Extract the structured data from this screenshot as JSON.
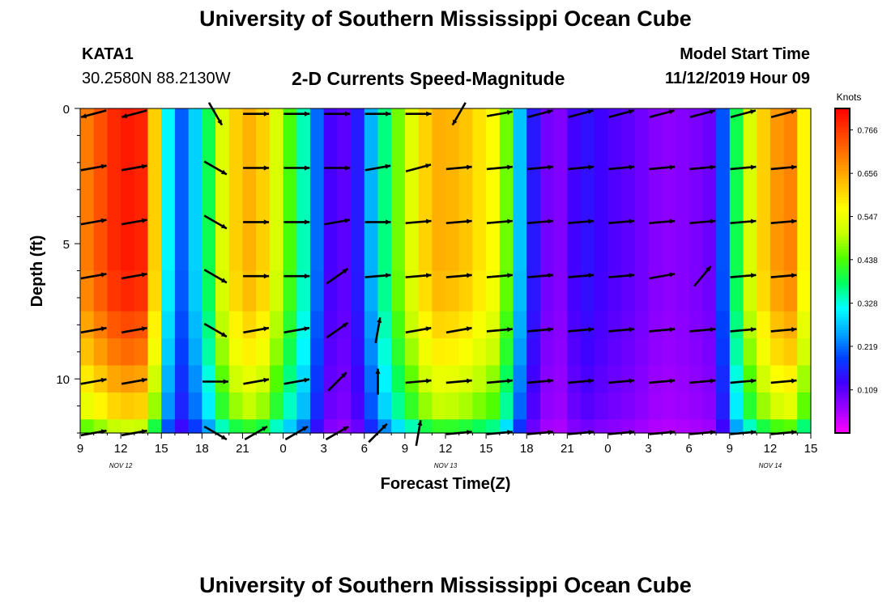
{
  "header": {
    "title": "University of Southern Mississippi Ocean Cube",
    "station": "KATA1",
    "coordinates": "30.2580N 88.2130W",
    "subtitle": "2-D Currents Speed-Magnitude",
    "model_start_label": "Model Start Time",
    "model_start_value": "11/12/2019 Hour 09"
  },
  "footer": {
    "title": "University of Southern Mississippi Ocean Cube"
  },
  "chart_data": {
    "type": "heatmap",
    "xlabel": "Forecast Time(Z)",
    "ylabel": "Depth (ft)",
    "x_tick_labels": [
      "9",
      "12",
      "15",
      "18",
      "21",
      "0",
      "3",
      "6",
      "9",
      "12",
      "15",
      "18",
      "21",
      "0",
      "3",
      "6",
      "9",
      "12",
      "15"
    ],
    "date_labels": [
      "NOV 12",
      "NOV 13",
      "NOV 14"
    ],
    "y_ticks": [
      0,
      5,
      10
    ],
    "ylim": [
      0,
      12
    ],
    "colorbar": {
      "unit": "Knots",
      "tick_labels": [
        "0.766",
        "0.656",
        "0.547",
        "0.438",
        "0.328",
        "0.219",
        "0.109"
      ],
      "min": 0.0,
      "max": 0.82
    },
    "colormap": [
      "#ff00ff",
      "#9a00ff",
      "#4000ff",
      "#0040ff",
      "#00a8ff",
      "#00ffff",
      "#00ff60",
      "#50ff00",
      "#c8ff00",
      "#ffff00",
      "#ffc000",
      "#ff8000",
      "#ff4000",
      "#ff0000"
    ],
    "depth_levels": [
      1,
      3,
      5,
      7,
      9,
      11,
      12
    ],
    "surface_speed_profile": {
      "hours": [
        0,
        3,
        5,
        6,
        7,
        9,
        11,
        13,
        15,
        17,
        18,
        20,
        23,
        26,
        28,
        31,
        33,
        35,
        36,
        37,
        39,
        41,
        43,
        45,
        47,
        48,
        49,
        51,
        53,
        54
      ],
      "speeds": [
        0.68,
        0.8,
        0.78,
        0.45,
        0.17,
        0.32,
        0.6,
        0.66,
        0.48,
        0.3,
        0.13,
        0.1,
        0.42,
        0.65,
        0.64,
        0.55,
        0.18,
        0.06,
        0.1,
        0.15,
        0.12,
        0.1,
        0.07,
        0.08,
        0.1,
        0.3,
        0.48,
        0.66,
        0.7,
        0.45
      ]
    },
    "depth_speed_factor": [
      1.0,
      1.0,
      1.0,
      0.98,
      0.9,
      0.78,
      0.6
    ],
    "arrow_times": [
      1,
      4,
      10,
      13,
      16,
      19,
      22,
      25,
      28,
      31,
      34,
      37,
      40,
      43,
      46,
      49,
      52
    ],
    "arrow_depths": [
      0.2,
      2.2,
      4.2,
      6.2,
      8.2,
      10.1,
      12.0
    ],
    "arrow_directions_deg": [
      [
        195,
        195,
        300,
        0,
        0,
        0,
        0,
        0,
        240,
        10,
        15,
        15,
        15,
        15,
        15,
        15,
        15
      ],
      [
        10,
        10,
        330,
        0,
        0,
        0,
        10,
        15,
        5,
        5,
        5,
        5,
        5,
        5,
        5,
        5,
        5
      ],
      [
        10,
        10,
        330,
        0,
        0,
        10,
        0,
        5,
        5,
        5,
        5,
        5,
        5,
        5,
        5,
        5,
        5
      ],
      [
        10,
        10,
        330,
        0,
        0,
        35,
        5,
        5,
        5,
        5,
        5,
        5,
        5,
        10,
        50,
        5,
        5
      ],
      [
        10,
        10,
        330,
        10,
        10,
        35,
        80,
        10,
        10,
        5,
        5,
        5,
        5,
        5,
        5,
        5,
        5
      ],
      [
        10,
        10,
        0,
        10,
        10,
        45,
        90,
        5,
        5,
        5,
        5,
        5,
        5,
        5,
        5,
        5,
        5
      ],
      [
        10,
        10,
        330,
        30,
        30,
        30,
        45,
        80,
        5,
        5,
        5,
        5,
        5,
        5,
        5,
        5,
        5
      ]
    ]
  }
}
